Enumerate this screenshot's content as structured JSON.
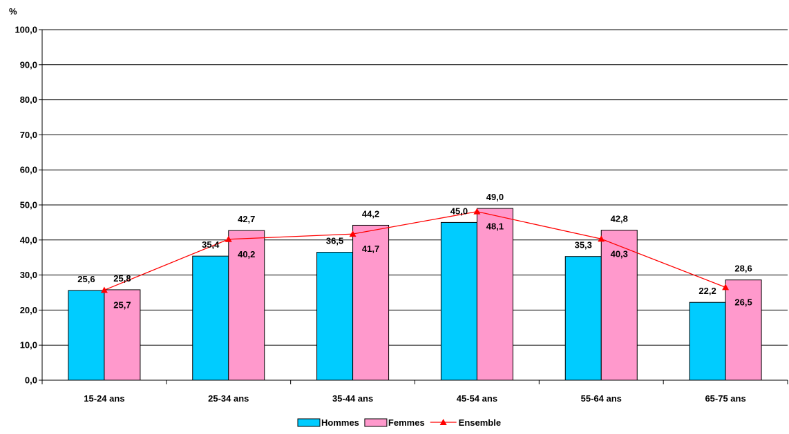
{
  "chart_data": {
    "type": "bar",
    "ylabel": "%",
    "ylim": [
      0,
      100
    ],
    "y_ticks": [
      0,
      10,
      20,
      30,
      40,
      50,
      60,
      70,
      80,
      90,
      100
    ],
    "y_tick_labels": [
      "0,0",
      "10,0",
      "20,0",
      "30,0",
      "40,0",
      "50,0",
      "60,0",
      "70,0",
      "80,0",
      "90,0",
      "100,0"
    ],
    "grid": true,
    "legend_position": "bottom",
    "categories": [
      "15-24 ans",
      "25-34 ans",
      "35-44 ans",
      "45-54 ans",
      "55-64 ans",
      "65-75 ans"
    ],
    "series": [
      {
        "name": "Hommes",
        "kind": "bar",
        "color": "#00ccff",
        "values": [
          25.6,
          35.4,
          36.5,
          45.0,
          35.3,
          22.2
        ],
        "labels": [
          "25,6",
          "35,4",
          "36,5",
          "45,0",
          "35,3",
          "22,2"
        ]
      },
      {
        "name": "Femmes",
        "kind": "bar",
        "color": "#ff99cc",
        "values": [
          25.8,
          42.7,
          44.2,
          49.0,
          42.8,
          28.6
        ],
        "labels": [
          "25,8",
          "42,7",
          "44,2",
          "49,0",
          "42,8",
          "28,6"
        ]
      },
      {
        "name": "Ensemble",
        "kind": "line",
        "color": "#ff0000",
        "marker": "triangle",
        "values": [
          25.7,
          40.2,
          41.7,
          48.1,
          40.3,
          26.5
        ],
        "labels": [
          "25,7",
          "40,2",
          "41,7",
          "48,1",
          "40,3",
          "26,5"
        ]
      }
    ]
  }
}
